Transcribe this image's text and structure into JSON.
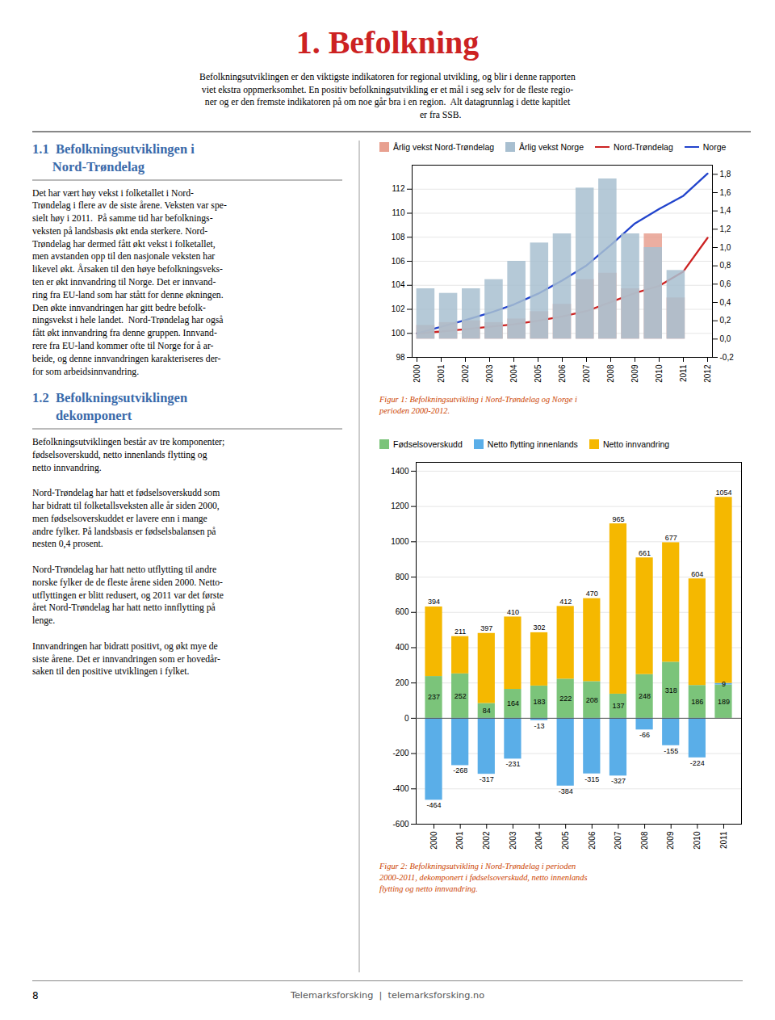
{
  "title": "1. Befolkning",
  "subtitle": [
    "Befolkningsutviklingen er den viktigste indikatoren for regional utvikling, og blir i denne rapporten",
    "viet ekstra oppmerksomhet. En positiv befolkningsutvikling er et mål i seg selv for de fleste regio-",
    "ner og er den fremste indikatoren på om noe går bra i en region.  Alt datagrunnlag i dette kapitlet",
    "                                             er fra SSB."
  ],
  "annotations": [
    {
      "title": [
        "1.1  Befolkningsutviklingen i",
        "      Nord-Trøndelag"
      ],
      "text": [
        [
          "Det har vært høy vekst i folketallet i Nord-",
          "Trøndelag i flere av de siste årene. Veksten var spe-",
          "sielt høy i 2011.  På samme tid har befolknings-",
          "veksten på landsbasis økt enda sterkere. Nord-",
          "Trøndelag har dermed fått økt vekst i folketallet,",
          "men avstanden opp til den nasjonale veksten har",
          "likevel økt. Årsaken til den høye befolkningsveks-",
          "ten er økt innvandring til Norge. Det er innvand-",
          "ring fra EU-land som har stått for denne økningen.",
          "Den økte innvandringen har gitt bedre befolk-",
          "ningsvekst i hele landet.  Nord-Trøndelag har også",
          "fått økt innvandring fra denne gruppen. Innvand-",
          "rere fra EU-land kommer ofte til Norge for å ar-",
          "beide, og denne innvandringen karakteriseres der-",
          "for som arbeidsinnvandring."
        ]
      ]
    },
    {
      "title": [
        "1.2  Befolkningsutviklingen",
        "       dekomponert"
      ],
      "text": [
        [
          "Befolkningsutviklingen består av tre komponenter;",
          "fødselsoverskudd, netto innenlands flytting og",
          "netto innvandring."
        ],
        [
          "Nord-Trøndelag har hatt et fødselsoverskudd som",
          "har bidratt til folketallsveksten alle år siden 2000,",
          "men fødselsoverskuddet er lavere enn i mange",
          "andre fylker. På landsbasis er fødselsbalansen på",
          "nesten 0,4 prosent."
        ],
        [
          "Nord-Trøndelag har hatt netto utflytting til andre",
          "norske fylker de de fleste årene siden 2000. Netto-",
          "utflyttingen er blitt redusert, og 2011 var det første",
          "året Nord-Trøndelag har hatt netto innflytting på",
          "lenge."
        ],
        [
          "Innvandringen har bidratt positivt, og økt mye de",
          "siste årene. Det er innvandringen som er hovedår-",
          "saken til den positive utviklingen i fylket."
        ]
      ]
    }
  ],
  "footer": [
    "8",
    "Telemarksforsking  |  telemarksforsking.no"
  ],
  "chart_data": [
    {
      "type": "bar",
      "title": [
        "Figur 1: Befolkningsutvikling i Nord-Trøndelag og Norge i",
        "perioden 2000-2012."
      ],
      "categories": [
        2000,
        2001,
        2002,
        2003,
        2004,
        2005,
        2006,
        2007,
        2008,
        2009,
        2010,
        2011,
        2012
      ],
      "series": [
        {
          "name": "Årlig vekst Nord-Trøndelag",
          "type": "bar",
          "axis": "y2",
          "color": "#e8a090",
          "values": [
            0.15,
            0.18,
            0.2,
            0.18,
            0.22,
            0.3,
            0.38,
            0.65,
            0.72,
            0.55,
            1.15,
            0.45,
            0.0
          ]
        },
        {
          "name": "Årlig vekst Norge",
          "type": "bar",
          "axis": "y2",
          "color": "#a8bfd0",
          "values": [
            0.55,
            0.5,
            0.55,
            0.65,
            0.85,
            1.05,
            1.15,
            1.65,
            1.75,
            1.15,
            1.0,
            0.75,
            0.0
          ]
        },
        {
          "name": "Nord-Trøndelag",
          "type": "line",
          "color": "#cc2222",
          "values": [
            100.0,
            100.15,
            100.35,
            100.55,
            100.75,
            101.05,
            101.4,
            101.85,
            102.6,
            103.35,
            103.95,
            105.15,
            107.95
          ]
        },
        {
          "name": "Norge",
          "type": "line",
          "color": "#2244cc",
          "values": [
            100.0,
            100.55,
            101.1,
            101.7,
            102.4,
            103.3,
            104.4,
            105.65,
            107.35,
            109.15,
            110.35,
            111.45,
            113.3
          ]
        }
      ],
      "ylim": [
        98,
        114
      ],
      "yticks": [
        98,
        100,
        102,
        104,
        106,
        108,
        110,
        112
      ],
      "y2lim": [
        -0.2,
        1.9
      ],
      "y2ticks": [
        {
          "value": -0.2,
          "label": "-0,2"
        },
        {
          "value": 0.0,
          "label": "0,0"
        },
        {
          "value": 0.2,
          "label": "0,2"
        },
        {
          "value": 0.4,
          "label": "0,4"
        },
        {
          "value": 0.6,
          "label": "0,6"
        },
        {
          "value": 0.8,
          "label": "0,8"
        },
        {
          "value": 1.0,
          "label": "1,0"
        },
        {
          "value": 1.2,
          "label": "1,2"
        },
        {
          "value": 1.4,
          "label": "1,4"
        },
        {
          "value": 1.6,
          "label": "1,6"
        },
        {
          "value": 1.8,
          "label": "1,8"
        }
      ],
      "grid": true,
      "legend": "upper left"
    },
    {
      "type": "bar",
      "stacked": true,
      "data_labels": true,
      "title": [
        "Figur 2: Befolkningsutvikling i Nord-Trøndelag i perioden",
        "2000-2011, dekomponert i fødselsoverskudd, netto innenlands",
        "flytting og netto innvandring."
      ],
      "categories": [
        2000,
        2001,
        2002,
        2003,
        2004,
        2005,
        2006,
        2007,
        2008,
        2009,
        2010,
        2011
      ],
      "series": [
        {
          "name": "Fødselsoverskudd",
          "color": "#7bc47a",
          "values": [
            237,
            252,
            84,
            164,
            183,
            222,
            208,
            137,
            248,
            318,
            186,
            189
          ]
        },
        {
          "name": "Netto flytting innenlands",
          "color": "#5aaee8",
          "values": [
            -464,
            -268,
            -317,
            -231,
            -13,
            -384,
            -315,
            -327,
            -66,
            -155,
            -224,
            9
          ]
        },
        {
          "name": "Netto innvandring",
          "color": "#f5b800",
          "values": [
            394,
            211,
            397,
            410,
            302,
            412,
            470,
            965,
            661,
            677,
            604,
            1054
          ]
        }
      ],
      "ylim": [
        -600,
        1450
      ],
      "yticks": [
        -600,
        -400,
        -200,
        0,
        200,
        400,
        600,
        800,
        1000,
        1200,
        1400
      ],
      "grid": true,
      "legend": "upper left"
    }
  ]
}
